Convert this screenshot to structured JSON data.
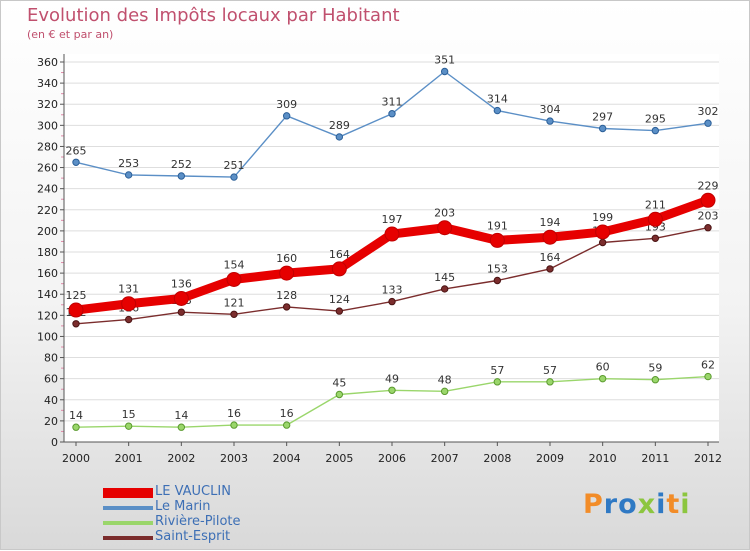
{
  "chart_data": {
    "type": "line",
    "title": "Evolution des Impôts locaux par Habitant",
    "subtitle": "(en € et par an)",
    "x": [
      "2000",
      "2001",
      "2002",
      "2003",
      "2004",
      "2005",
      "2006",
      "2007",
      "2008",
      "2009",
      "2010",
      "2011",
      "2012"
    ],
    "ylim": [
      0,
      360
    ],
    "yticks": [
      0,
      20,
      40,
      60,
      80,
      100,
      120,
      140,
      160,
      180,
      200,
      220,
      240,
      260,
      280,
      300,
      320,
      340,
      360
    ],
    "grid": "horizontal",
    "series": [
      {
        "name": "Le Marin",
        "color": "#5b8fc6",
        "values": [
          265,
          253,
          252,
          251,
          309,
          289,
          311,
          351,
          314,
          304,
          297,
          295,
          302
        ]
      },
      {
        "name": "Rivière-Pilote",
        "color": "#9ad66b",
        "values": [
          14,
          15,
          14,
          16,
          16,
          45,
          49,
          48,
          57,
          57,
          60,
          59,
          62
        ]
      },
      {
        "name": "Saint-Esprit",
        "color": "#7b2d2d",
        "values": [
          112,
          116,
          123,
          121,
          128,
          124,
          133,
          145,
          153,
          164,
          189,
          193,
          203
        ]
      },
      {
        "name": "LE VAUCLIN",
        "color": "#e60000",
        "values": [
          125,
          131,
          136,
          154,
          160,
          164,
          197,
          203,
          191,
          194,
          199,
          211,
          229
        ]
      }
    ],
    "legend": [
      "LE VAUCLIN",
      "Le Marin",
      "Rivière-Pilote",
      "Saint-Esprit"
    ],
    "legend_position": "bottom-left"
  },
  "brand": {
    "logo_letters": [
      "P",
      "r",
      "o",
      "x",
      "i",
      "t",
      "i"
    ],
    "logo_colors": [
      "#f28c28",
      "#2f79c4",
      "#2f79c4",
      "#8cc63f",
      "#2f79c4",
      "#f28c28",
      "#8cc63f"
    ]
  }
}
